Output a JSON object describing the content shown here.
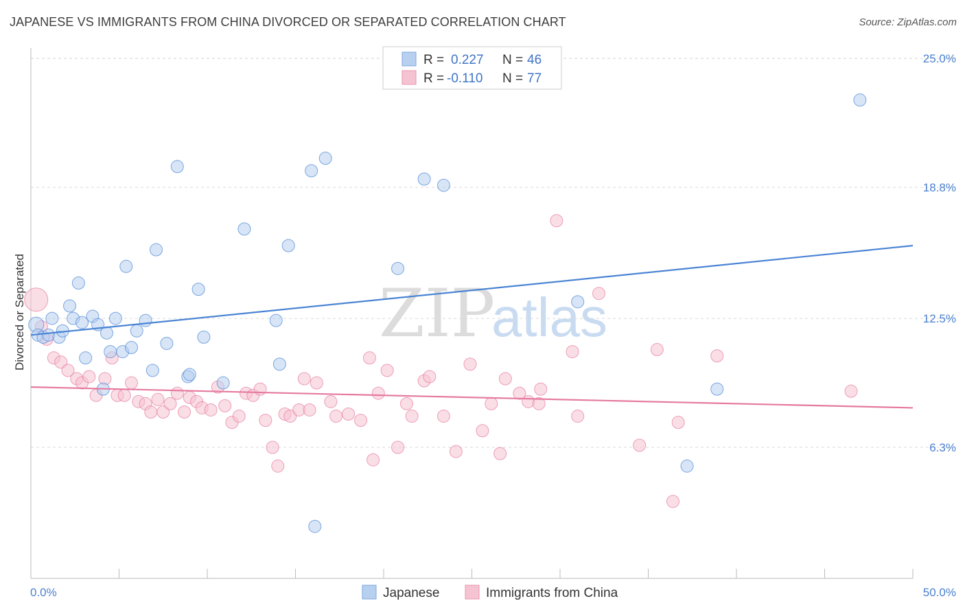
{
  "title": "JAPANESE VS IMMIGRANTS FROM CHINA DIVORCED OR SEPARATED CORRELATION CHART",
  "source": "Source: ZipAtlas.com",
  "watermark": {
    "zip": "ZIP",
    "atlas": "atlas"
  },
  "legend": {
    "r_label": "R =",
    "n_label": "N =",
    "rows": [
      {
        "r": "0.227",
        "n": "46",
        "color": "#a9c8ee"
      },
      {
        "r": "-0.110",
        "n": "77",
        "color": "#f5b6c9"
      }
    ]
  },
  "chart_data": {
    "type": "scatter",
    "title": "JAPANESE VS IMMIGRANTS FROM CHINA DIVORCED OR SEPARATED CORRELATION CHART",
    "xlabel": "",
    "ylabel": "Divorced or Separated",
    "xlim": [
      0,
      50
    ],
    "ylim": [
      0,
      25.5
    ],
    "x_tick_labels": [
      "0.0%",
      "50.0%"
    ],
    "y_ticks": [
      6.3,
      12.5,
      18.8,
      25.0
    ],
    "y_tick_labels": [
      "6.3%",
      "12.5%",
      "18.8%",
      "25.0%"
    ],
    "grid": true,
    "legend_position": "top-center",
    "series": [
      {
        "name": "Japanese",
        "color": "#4a84d4",
        "fill": "#b7d0f0",
        "r": 0.227,
        "n": 46,
        "trend": {
          "x0": 0,
          "y0": 11.7,
          "x1": 50,
          "y1": 16.0
        },
        "points": [
          [
            0.3,
            12.2
          ],
          [
            0.4,
            11.7
          ],
          [
            0.7,
            11.6
          ],
          [
            1.0,
            11.7
          ],
          [
            1.2,
            12.5
          ],
          [
            1.6,
            11.6
          ],
          [
            1.8,
            11.9
          ],
          [
            2.2,
            13.1
          ],
          [
            2.4,
            12.5
          ],
          [
            2.7,
            14.2
          ],
          [
            2.9,
            12.3
          ],
          [
            3.1,
            10.6
          ],
          [
            3.5,
            12.6
          ],
          [
            3.8,
            12.2
          ],
          [
            4.1,
            9.1
          ],
          [
            4.3,
            11.8
          ],
          [
            4.5,
            10.9
          ],
          [
            4.8,
            12.5
          ],
          [
            5.2,
            10.9
          ],
          [
            5.4,
            15.0
          ],
          [
            5.7,
            11.1
          ],
          [
            6.0,
            11.9
          ],
          [
            6.5,
            12.4
          ],
          [
            6.9,
            10.0
          ],
          [
            7.1,
            15.8
          ],
          [
            7.7,
            11.3
          ],
          [
            8.3,
            19.8
          ],
          [
            8.9,
            9.7
          ],
          [
            9.0,
            9.8
          ],
          [
            9.5,
            13.9
          ],
          [
            9.8,
            11.6
          ],
          [
            10.9,
            9.4
          ],
          [
            12.1,
            16.8
          ],
          [
            13.9,
            12.4
          ],
          [
            14.1,
            10.3
          ],
          [
            14.6,
            16.0
          ],
          [
            15.9,
            19.6
          ],
          [
            16.1,
            2.5
          ],
          [
            16.7,
            20.2
          ],
          [
            20.8,
            14.9
          ],
          [
            22.3,
            19.2
          ],
          [
            23.4,
            18.9
          ],
          [
            31.0,
            13.3
          ],
          [
            38.9,
            9.1
          ],
          [
            37.2,
            5.4
          ],
          [
            47.0,
            23.0
          ]
        ]
      },
      {
        "name": "Immigrants from China",
        "color": "#e5799f",
        "fill": "#f6c3d2",
        "r": -0.11,
        "n": 77,
        "trend": {
          "x0": 0,
          "y0": 9.2,
          "x1": 50,
          "y1": 8.2
        },
        "points": [
          [
            0.3,
            13.4
          ],
          [
            0.6,
            12.1
          ],
          [
            0.9,
            11.5
          ],
          [
            1.3,
            10.6
          ],
          [
            1.7,
            10.4
          ],
          [
            2.1,
            10.0
          ],
          [
            2.6,
            9.6
          ],
          [
            2.9,
            9.4
          ],
          [
            3.3,
            9.7
          ],
          [
            3.7,
            8.8
          ],
          [
            4.2,
            9.6
          ],
          [
            4.6,
            10.6
          ],
          [
            4.9,
            8.8
          ],
          [
            5.3,
            8.8
          ],
          [
            5.7,
            9.4
          ],
          [
            6.1,
            8.5
          ],
          [
            6.5,
            8.4
          ],
          [
            6.8,
            8.0
          ],
          [
            7.2,
            8.6
          ],
          [
            7.5,
            8.0
          ],
          [
            7.9,
            8.4
          ],
          [
            8.3,
            8.9
          ],
          [
            8.7,
            8.0
          ],
          [
            9.0,
            8.7
          ],
          [
            9.4,
            8.5
          ],
          [
            9.7,
            8.2
          ],
          [
            10.2,
            8.1
          ],
          [
            10.6,
            9.2
          ],
          [
            11.0,
            8.3
          ],
          [
            11.4,
            7.5
          ],
          [
            11.8,
            7.8
          ],
          [
            12.2,
            8.9
          ],
          [
            12.6,
            8.8
          ],
          [
            13.0,
            9.1
          ],
          [
            13.3,
            7.6
          ],
          [
            13.7,
            6.3
          ],
          [
            14.0,
            5.4
          ],
          [
            14.4,
            7.9
          ],
          [
            14.7,
            7.8
          ],
          [
            15.2,
            8.1
          ],
          [
            15.5,
            9.6
          ],
          [
            15.8,
            8.1
          ],
          [
            16.2,
            9.4
          ],
          [
            17.0,
            8.5
          ],
          [
            17.3,
            7.8
          ],
          [
            18.0,
            7.9
          ],
          [
            18.7,
            7.6
          ],
          [
            19.2,
            10.6
          ],
          [
            19.4,
            5.7
          ],
          [
            19.7,
            8.9
          ],
          [
            20.2,
            10.0
          ],
          [
            20.8,
            6.3
          ],
          [
            21.3,
            8.4
          ],
          [
            21.6,
            7.8
          ],
          [
            22.3,
            9.5
          ],
          [
            22.6,
            9.7
          ],
          [
            23.4,
            7.8
          ],
          [
            24.1,
            6.1
          ],
          [
            24.9,
            10.3
          ],
          [
            25.6,
            7.1
          ],
          [
            26.1,
            8.4
          ],
          [
            26.6,
            6.0
          ],
          [
            26.9,
            9.6
          ],
          [
            27.7,
            8.9
          ],
          [
            28.2,
            8.5
          ],
          [
            28.8,
            8.4
          ],
          [
            28.9,
            9.1
          ],
          [
            29.8,
            17.2
          ],
          [
            30.7,
            10.9
          ],
          [
            31.0,
            7.8
          ],
          [
            32.2,
            13.7
          ],
          [
            34.5,
            6.4
          ],
          [
            35.5,
            11.0
          ],
          [
            36.4,
            3.7
          ],
          [
            36.7,
            7.5
          ],
          [
            38.9,
            10.7
          ],
          [
            46.5,
            9.0
          ]
        ]
      }
    ]
  }
}
